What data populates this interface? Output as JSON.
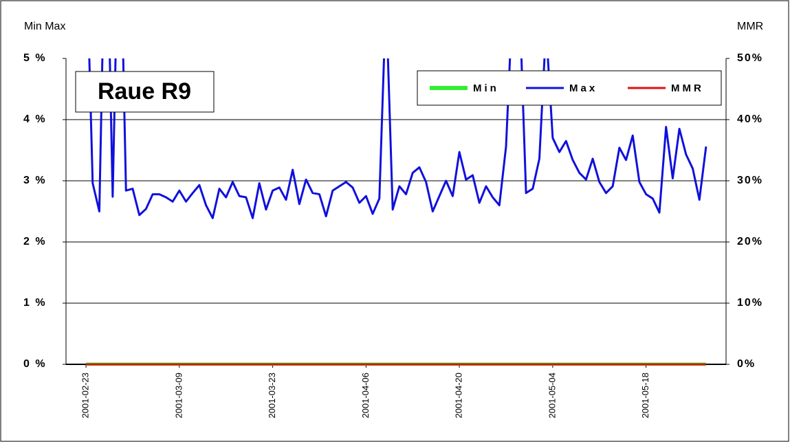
{
  "chart_data": {
    "type": "line",
    "title": "Raue R9",
    "y_label": "Min Max",
    "y2_label": "MMR",
    "x": [
      "2001-02-23",
      "2001-02-24",
      "2001-02-25",
      "2001-02-26",
      "2001-02-27",
      "2001-02-28",
      "2001-03-01",
      "2001-03-02",
      "2001-03-03",
      "2001-03-04",
      "2001-03-05",
      "2001-03-06",
      "2001-03-07",
      "2001-03-08",
      "2001-03-09",
      "2001-03-10",
      "2001-03-11",
      "2001-03-12",
      "2001-03-13",
      "2001-03-14",
      "2001-03-15",
      "2001-03-16",
      "2001-03-17",
      "2001-03-18",
      "2001-03-19",
      "2001-03-20",
      "2001-03-21",
      "2001-03-22",
      "2001-03-23",
      "2001-03-24",
      "2001-03-25",
      "2001-03-26",
      "2001-03-27",
      "2001-03-28",
      "2001-03-29",
      "2001-03-30",
      "2001-03-31",
      "2001-04-01",
      "2001-04-02",
      "2001-04-03",
      "2001-04-04",
      "2001-04-05",
      "2001-04-06",
      "2001-04-07",
      "2001-04-08",
      "2001-04-09",
      "2001-04-10",
      "2001-04-11",
      "2001-04-12",
      "2001-04-13",
      "2001-04-14",
      "2001-04-15",
      "2001-04-16",
      "2001-04-17",
      "2001-04-18",
      "2001-04-19",
      "2001-04-20",
      "2001-04-21",
      "2001-04-22",
      "2001-04-23",
      "2001-04-24",
      "2001-04-25",
      "2001-04-26",
      "2001-04-27",
      "2001-04-28",
      "2001-04-29",
      "2001-04-30",
      "2001-05-01",
      "2001-05-02",
      "2001-05-03",
      "2001-05-04",
      "2001-05-05",
      "2001-05-06",
      "2001-05-07",
      "2001-05-08",
      "2001-05-09",
      "2001-05-10",
      "2001-05-11",
      "2001-05-12",
      "2001-05-13",
      "2001-05-14",
      "2001-05-15",
      "2001-05-16",
      "2001-05-17",
      "2001-05-18",
      "2001-05-19",
      "2001-05-20",
      "2001-05-21",
      "2001-05-22",
      "2001-05-23",
      "2001-05-24",
      "2001-05-25",
      "2001-05-26",
      "2001-05-27"
    ],
    "xlim": [
      "2001-02-20",
      "2001-05-30"
    ],
    "xticks": [
      "2001-02-23",
      "2001-03-09",
      "2001-03-23",
      "2001-04-06",
      "2001-04-20",
      "2001-05-04",
      "2001-05-18"
    ],
    "ylim": [
      0,
      5
    ],
    "yticks": [
      {
        "value": 0,
        "label": "0 %"
      },
      {
        "value": 1,
        "label": "1 %"
      },
      {
        "value": 2,
        "label": "2 %"
      },
      {
        "value": 3,
        "label": "3 %"
      },
      {
        "value": 4,
        "label": "4 %"
      },
      {
        "value": 5,
        "label": "5 %"
      }
    ],
    "y2lim": [
      0,
      50
    ],
    "y2ticks": [
      {
        "value": 0,
        "label": "0%"
      },
      {
        "value": 10,
        "label": "10%"
      },
      {
        "value": 20,
        "label": "20%"
      },
      {
        "value": 30,
        "label": "30%"
      },
      {
        "value": 40,
        "label": "40%"
      },
      {
        "value": 50,
        "label": "50%"
      }
    ],
    "grid": true,
    "legend": "top-right",
    "series": [
      {
        "name": "Min",
        "color": "#33ee33",
        "values": [
          0,
          0,
          0,
          0,
          0,
          0,
          0,
          0,
          0,
          0,
          0,
          0,
          0,
          0,
          0,
          0,
          0,
          0,
          0,
          0,
          0,
          0,
          0,
          0,
          0,
          0,
          0,
          0,
          0,
          0,
          0,
          0,
          0,
          0,
          0,
          0,
          0,
          0,
          0,
          0,
          0,
          0,
          0,
          0,
          0,
          0,
          0,
          0,
          0,
          0,
          0,
          0,
          0,
          0,
          0,
          0,
          0,
          0,
          0,
          0,
          0,
          0,
          0,
          0,
          0,
          0,
          0,
          0,
          0,
          0,
          0,
          0,
          0,
          0,
          0,
          0,
          0,
          0,
          0,
          0,
          0,
          0,
          0,
          0,
          0,
          0,
          0,
          0,
          0,
          0,
          0,
          0,
          0,
          0
        ]
      },
      {
        "name": "Max",
        "color": "#1010dd",
        "values": [
          7,
          2.96,
          2.5,
          8,
          2.74,
          8,
          2.84,
          2.87,
          2.44,
          2.54,
          2.78,
          2.78,
          2.73,
          2.66,
          2.84,
          2.66,
          2.8,
          2.93,
          2.6,
          2.39,
          2.87,
          2.73,
          2.98,
          2.75,
          2.73,
          2.39,
          2.96,
          2.53,
          2.84,
          2.89,
          2.69,
          3.18,
          2.62,
          3.02,
          2.8,
          2.78,
          2.42,
          2.84,
          2.91,
          2.98,
          2.89,
          2.64,
          2.75,
          2.46,
          2.71,
          6,
          2.53,
          2.91,
          2.78,
          3.13,
          3.22,
          2.98,
          2.5,
          2.75,
          3.0,
          2.75,
          3.47,
          3.02,
          3.09,
          2.64,
          2.91,
          2.73,
          2.6,
          3.56,
          6,
          6,
          2.8,
          2.87,
          3.36,
          5.5,
          3.7,
          3.47,
          3.65,
          3.34,
          3.13,
          3.02,
          3.36,
          2.98,
          2.8,
          2.91,
          3.54,
          3.34,
          3.74,
          2.98,
          2.78,
          2.71,
          2.48,
          3.88,
          3.04,
          3.85,
          3.43,
          3.2,
          2.69,
          3.56
        ]
      },
      {
        "name": "MMR",
        "color": "#dd1111",
        "axis": "y2",
        "values": [
          0,
          0,
          0,
          0,
          0,
          0,
          0,
          0,
          0,
          0,
          0,
          0,
          0,
          0,
          0,
          0,
          0,
          0,
          0,
          0,
          0,
          0,
          0,
          0,
          0,
          0,
          0,
          0,
          0,
          0,
          0,
          0,
          0,
          0,
          0,
          0,
          0,
          0,
          0,
          0,
          0,
          0,
          0,
          0,
          0,
          0,
          0,
          0,
          0,
          0,
          0,
          0,
          0,
          0,
          0,
          0,
          0,
          0,
          0,
          0,
          0,
          0,
          0,
          0,
          0,
          0,
          0,
          0,
          0,
          0,
          0,
          0,
          0,
          0,
          0,
          0,
          0,
          0,
          0,
          0,
          0,
          0,
          0,
          0,
          0,
          0,
          0,
          0,
          0,
          0,
          0,
          0,
          0,
          0
        ]
      }
    ]
  }
}
